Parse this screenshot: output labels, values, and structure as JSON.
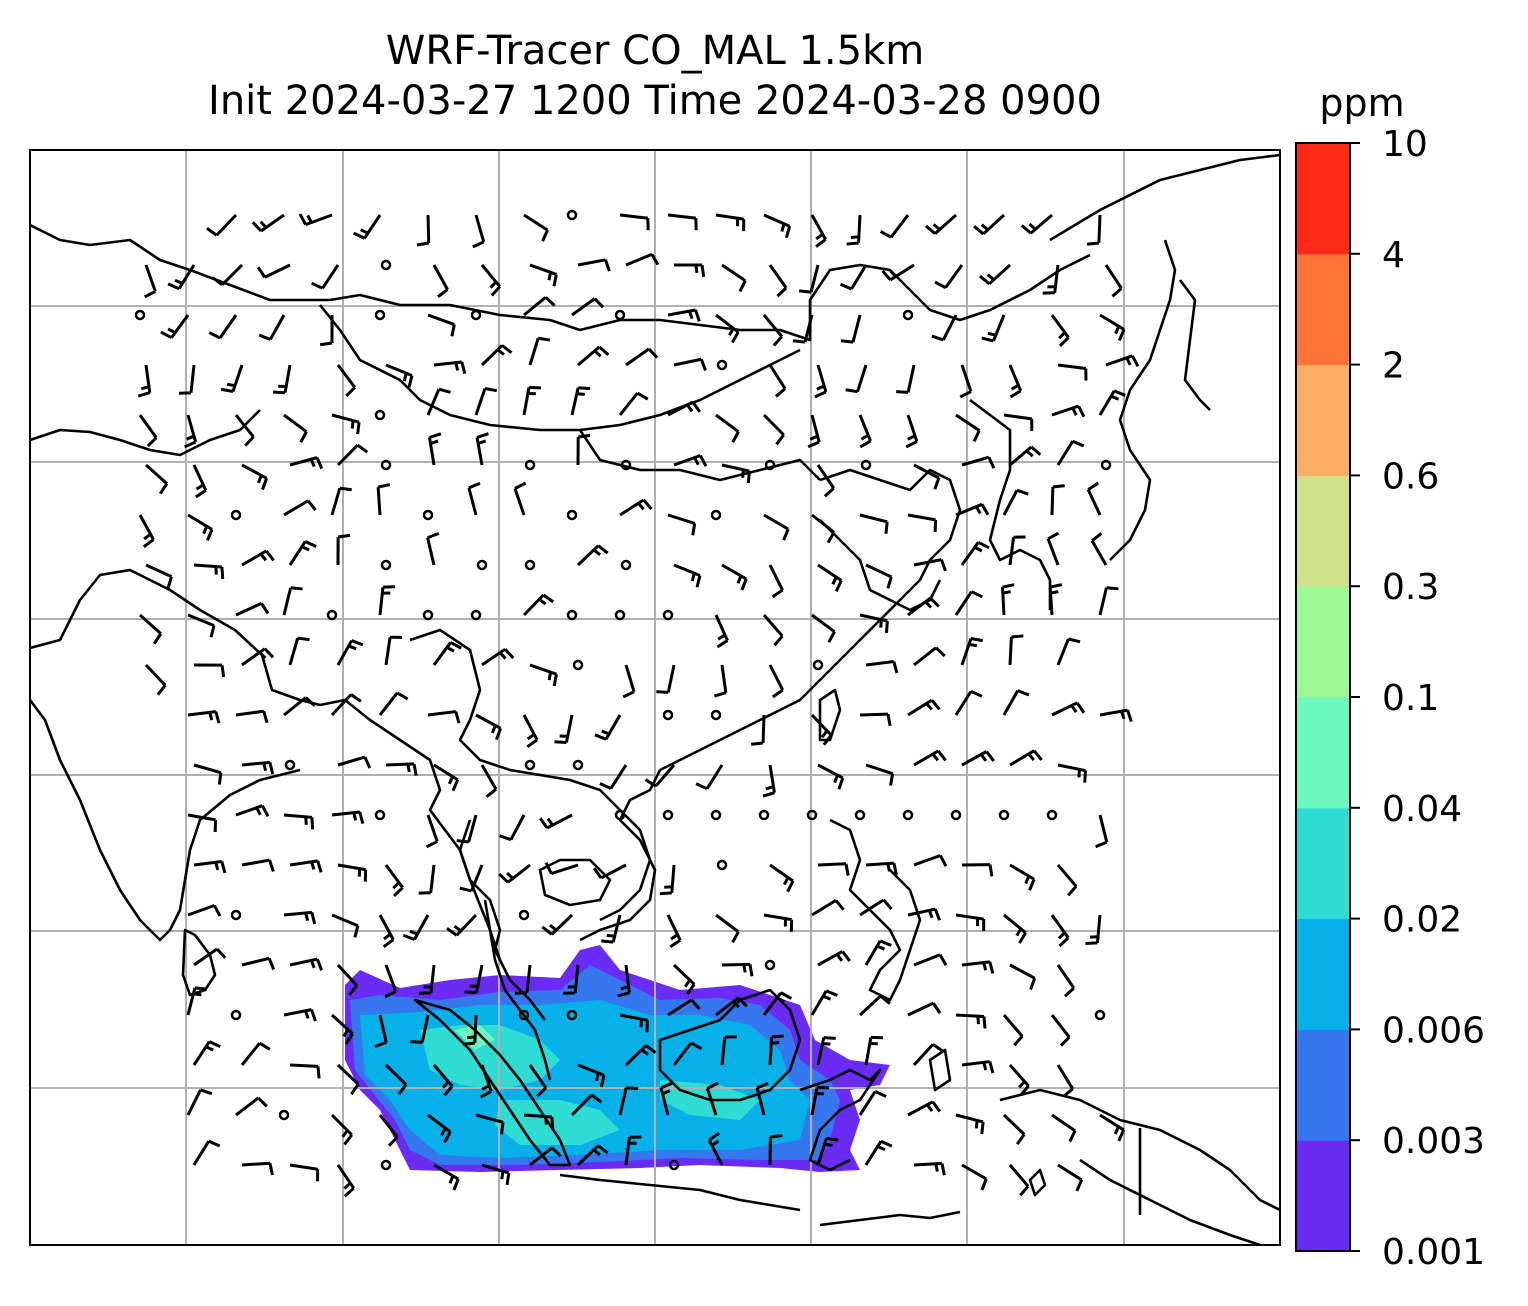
{
  "title": {
    "line1": "WRF-Tracer CO_MAL 1.5km",
    "line2": "Init 2024-03-27 1200 Time 2024-03-28 0900"
  },
  "colorbar": {
    "unit": "ppm",
    "ticks": [
      "0.001",
      "0.003",
      "0.006",
      "0.02",
      "0.04",
      "0.1",
      "0.3",
      "0.6",
      "2",
      "4",
      "10"
    ],
    "colors": [
      "#6a2cf5",
      "#3577ef",
      "#06b0e8",
      "#2fdcd4",
      "#6cf8be",
      "#9cf993",
      "#d1e18a",
      "#fdb063",
      "#ff7238",
      "#ff2a18"
    ]
  },
  "map": {
    "gridlines": true,
    "features": [
      "coastlines",
      "country borders",
      "wind barbs",
      "CO tracer concentration"
    ]
  }
}
